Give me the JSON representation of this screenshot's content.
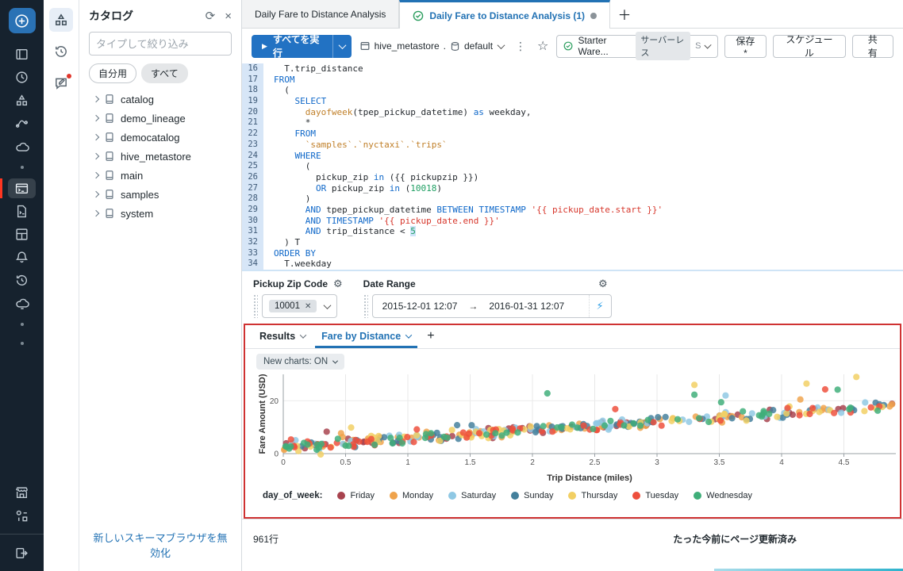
{
  "glyphs": {
    "run": "▶",
    "refresh": "⟳",
    "close": "×",
    "star": "☆",
    "kebab": "⋮",
    "gear": "⚙",
    "bolt": "⚡",
    "arrow": "→",
    "plus": "＋",
    "chip_x": "✕",
    "results_plus": "+"
  },
  "sidebar": {
    "icons": [
      "new",
      "workspace",
      "recents",
      "catalog",
      "workflows",
      "compute",
      "sql-editor",
      "queries",
      "dashboards",
      "alerts",
      "query-history",
      "sql-warehouses",
      "marketplace",
      "partner-connect",
      "collapse"
    ]
  },
  "rail2": {
    "icons": [
      "schema-browser",
      "history",
      "feedback"
    ]
  },
  "catalog_panel": {
    "title": "カタログ",
    "search_placeholder": "タイプして絞り込み",
    "filters": {
      "mine": "自分用",
      "all": "すべて"
    },
    "items": [
      "catalog",
      "demo_lineage",
      "democatalog",
      "hive_metastore",
      "main",
      "samples",
      "system"
    ],
    "footer_link": "新しいスキーマブラウザを無効化"
  },
  "tabs": {
    "tab1": "Daily Fare to Distance Analysis",
    "tab2": "Daily Fare to Distance Analysis (1)"
  },
  "toolbar": {
    "run_label": "すべてを実行",
    "catalog": "hive_metastore",
    "dot": ".",
    "schema": "default",
    "warehouse_name": "Starter Ware...",
    "warehouse_badge": "サーバーレス",
    "warehouse_size": "S",
    "save_label": "保存*",
    "schedule_label": "スケジュール",
    "share_label": "共 有"
  },
  "editor": {
    "lines": [
      {
        "n": 16,
        "t": [
          [
            "  T.trip_distance",
            "p"
          ]
        ]
      },
      {
        "n": 17,
        "t": [
          [
            "FROM",
            "k"
          ]
        ]
      },
      {
        "n": 18,
        "t": [
          [
            "  (",
            "p"
          ]
        ]
      },
      {
        "n": 19,
        "t": [
          [
            "    ",
            "p"
          ],
          [
            "SELECT",
            "k"
          ]
        ]
      },
      {
        "n": 20,
        "t": [
          [
            "      ",
            "p"
          ],
          [
            "dayofweek",
            "f"
          ],
          [
            "(tpep_pickup_datetime) ",
            "p"
          ],
          [
            "as",
            "k"
          ],
          [
            " weekday,",
            "p"
          ]
        ]
      },
      {
        "n": 21,
        "t": [
          [
            "      *",
            "p"
          ]
        ]
      },
      {
        "n": 22,
        "t": [
          [
            "    ",
            "p"
          ],
          [
            "FROM",
            "k"
          ]
        ]
      },
      {
        "n": 23,
        "t": [
          [
            "      ",
            "p"
          ],
          [
            "`samples`.`nyctaxi`.`trips`",
            "s"
          ]
        ]
      },
      {
        "n": 24,
        "t": [
          [
            "    ",
            "p"
          ],
          [
            "WHERE",
            "k"
          ]
        ]
      },
      {
        "n": 25,
        "t": [
          [
            "      (",
            "p"
          ]
        ]
      },
      {
        "n": 26,
        "t": [
          [
            "        pickup_zip ",
            "p"
          ],
          [
            "in",
            "k"
          ],
          [
            " ({{ pickupzip }})",
            "p"
          ]
        ]
      },
      {
        "n": 27,
        "t": [
          [
            "        ",
            "p"
          ],
          [
            "OR",
            "k"
          ],
          [
            " pickup_zip ",
            "p"
          ],
          [
            "in",
            "k"
          ],
          [
            " (",
            "p"
          ],
          [
            "10018",
            "n"
          ],
          [
            ")",
            "p"
          ]
        ]
      },
      {
        "n": 28,
        "t": [
          [
            "      )",
            "p"
          ]
        ]
      },
      {
        "n": 29,
        "t": [
          [
            "      ",
            "p"
          ],
          [
            "AND",
            "k"
          ],
          [
            " tpep_pickup_datetime ",
            "p"
          ],
          [
            "BETWEEN",
            "k"
          ],
          [
            " ",
            "p"
          ],
          [
            "TIMESTAMP",
            "k"
          ],
          [
            " ",
            "p"
          ],
          [
            "'{{ pickup_date.start }}'",
            "q"
          ]
        ]
      },
      {
        "n": 30,
        "t": [
          [
            "      ",
            "p"
          ],
          [
            "AND",
            "k"
          ],
          [
            " ",
            "p"
          ],
          [
            "TIMESTAMP",
            "k"
          ],
          [
            " ",
            "p"
          ],
          [
            "'{{ pickup_date.end }}'",
            "q"
          ]
        ]
      },
      {
        "n": 31,
        "t": [
          [
            "      ",
            "p"
          ],
          [
            "AND",
            "k"
          ],
          [
            " trip_distance < ",
            "p"
          ],
          [
            "5",
            "nh"
          ]
        ]
      },
      {
        "n": 32,
        "t": [
          [
            "  ) T",
            "p"
          ]
        ]
      },
      {
        "n": 33,
        "t": [
          [
            "ORDER BY",
            "k"
          ]
        ]
      },
      {
        "n": 34,
        "t": [
          [
            "  T.weekday",
            "p"
          ]
        ]
      }
    ]
  },
  "params": {
    "zip_label": "Pickup Zip Code",
    "zip_chip": "10001",
    "date_label": "Date Range",
    "date_start": "2015-12-01 12:07",
    "date_end": "2016-01-31 12:07"
  },
  "results": {
    "tab_results": "Results",
    "tab_chart": "Fare by Distance",
    "new_charts_label": "New charts: ON",
    "row_count": "961行",
    "refresh_status": "たった今前にページ更新済み"
  },
  "chart_data": {
    "type": "scatter",
    "title": "",
    "xlabel": "Trip Distance (miles)",
    "ylabel": "Fare Amount (USD)",
    "xlim": [
      0,
      4.9
    ],
    "ylim": [
      0,
      30
    ],
    "x_ticks": [
      0,
      0.5,
      1,
      1.5,
      2,
      2.5,
      3,
      3.5,
      4,
      4.5
    ],
    "y_ticks": [
      0,
      20
    ],
    "grid": true,
    "legend_position": "bottom",
    "legend_title": "day_of_week:",
    "trend_note": "fare ≈ 2.6 + 3.2 × distance with ±2.3 USD noise, ~55 points per weekday, x ∈ [0, 4.9]",
    "series": [
      {
        "name": "Friday",
        "color": "#a8434e",
        "seed": 11,
        "count": 54,
        "intercept": 2.6,
        "slope": 3.18,
        "noise": 2.3,
        "extra_points": []
      },
      {
        "name": "Monday",
        "color": "#efa34c",
        "seed": 22,
        "count": 54,
        "intercept": 2.6,
        "slope": 3.18,
        "noise": 2.3,
        "extra_points": [
          [
            4.15,
            20.5
          ]
        ]
      },
      {
        "name": "Saturday",
        "color": "#8fc8e4",
        "seed": 33,
        "count": 54,
        "intercept": 2.6,
        "slope": 3.18,
        "noise": 2.3,
        "extra_points": [
          [
            3.55,
            22.0
          ]
        ]
      },
      {
        "name": "Sunday",
        "color": "#44809c",
        "seed": 44,
        "count": 54,
        "intercept": 2.6,
        "slope": 3.18,
        "noise": 2.3,
        "extra_points": []
      },
      {
        "name": "Thursday",
        "color": "#f2cf63",
        "seed": 55,
        "count": 54,
        "intercept": 2.6,
        "slope": 3.18,
        "noise": 2.3,
        "extra_points": [
          [
            0.3,
            -0.3
          ],
          [
            4.2,
            26.5
          ],
          [
            4.6,
            29.0
          ],
          [
            3.3,
            26.0
          ]
        ]
      },
      {
        "name": "Tuesday",
        "color": "#ee4f3c",
        "seed": 66,
        "count": 54,
        "intercept": 2.6,
        "slope": 3.18,
        "noise": 2.3,
        "extra_points": [
          [
            4.35,
            24.3
          ]
        ]
      },
      {
        "name": "Wednesday",
        "color": "#3fae79",
        "seed": 77,
        "count": 54,
        "intercept": 2.6,
        "slope": 3.18,
        "noise": 2.3,
        "extra_points": [
          [
            2.12,
            22.8
          ],
          [
            4.45,
            24.2
          ],
          [
            3.3,
            22.3
          ]
        ]
      }
    ]
  }
}
